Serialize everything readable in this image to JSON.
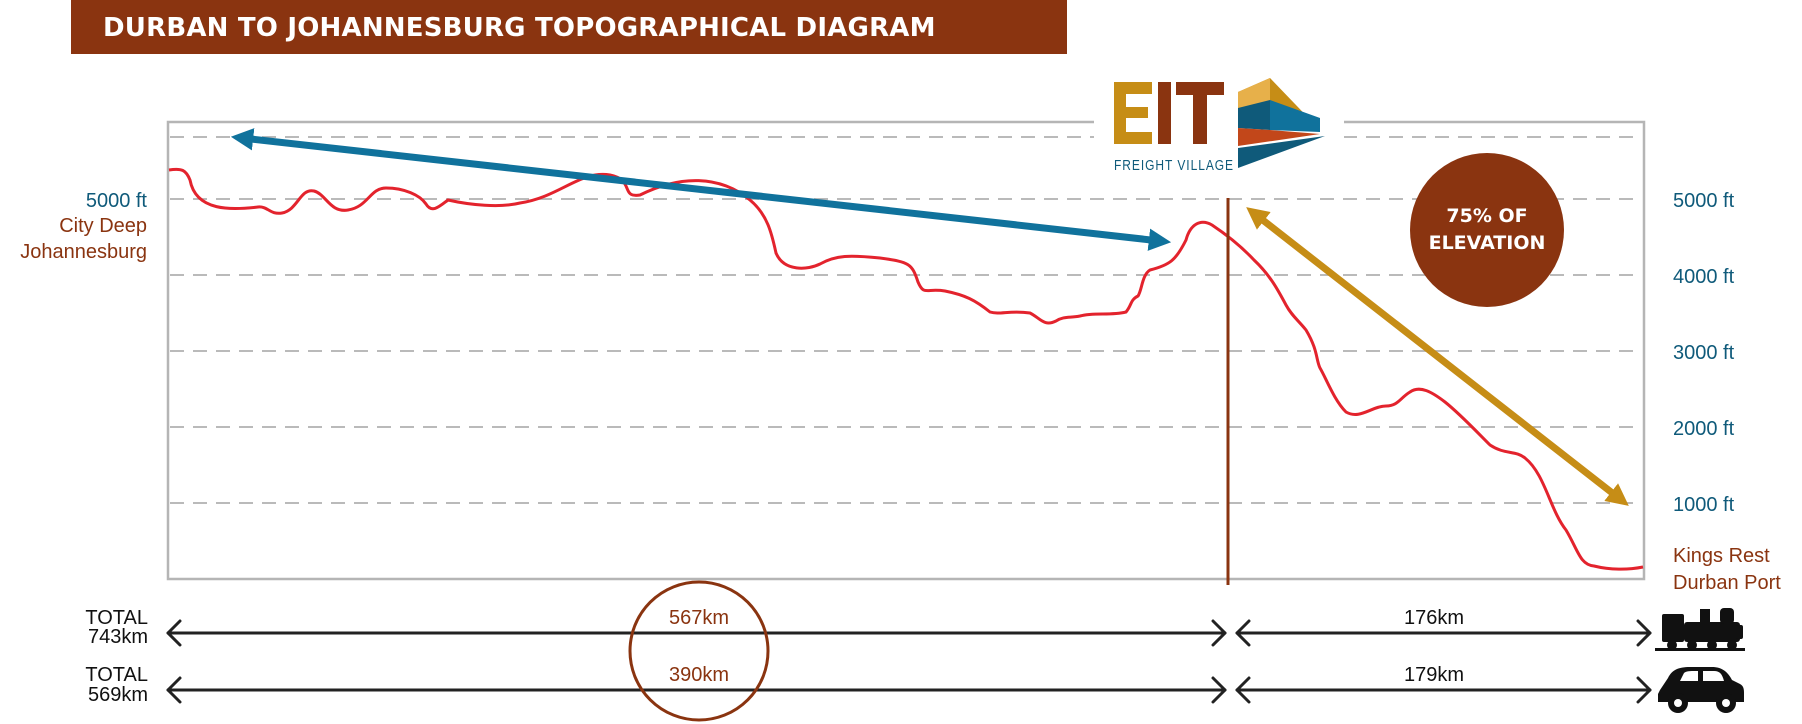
{
  "title": "DURBAN TO JOHANNESBURG TOPOGRAPHICAL DIAGRAM",
  "logo": {
    "letters": "EIT",
    "subtitle": "FREIGHT VILLAGE"
  },
  "left_labels": {
    "elevation": "5000 ft",
    "place_line1": "City Deep",
    "place_line2": "Johannesburg"
  },
  "right_axis_ticks": [
    "5000 ft",
    "4000 ft",
    "3000 ft",
    "2000 ft",
    "1000 ft"
  ],
  "right_labels": {
    "place_line1": "Kings Rest",
    "place_line2": "Durban Port"
  },
  "badge": {
    "line1": "75% OF",
    "line2": "ELEVATION"
  },
  "rail": {
    "total_label": "TOTAL",
    "total_value": "743km",
    "segment_1": "567km",
    "segment_2": "176km",
    "icon": "train-icon"
  },
  "road": {
    "total_label": "TOTAL",
    "total_value": "569km",
    "segment_1": "390km",
    "segment_2": "179km",
    "icon": "car-icon"
  },
  "colors": {
    "banner": "#8a3410",
    "profile_line": "#e3232d",
    "blue_arrow": "#10729c",
    "gold_arrow": "#c68d16",
    "rust": "#8a3410",
    "axis_text": "#0f5a7a"
  }
}
